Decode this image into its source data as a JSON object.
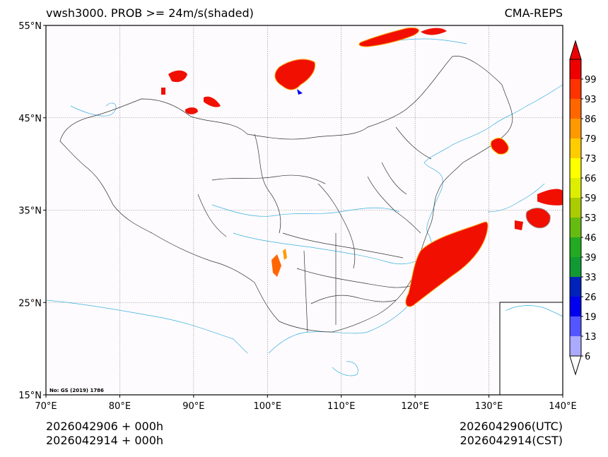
{
  "header": {
    "title_left": "vwsh3000. PROB >= 24m/s(shaded)",
    "title_right": "CMA-REPS"
  },
  "footer": {
    "left_line1": "2026042906  +  000h",
    "left_line2": "2026042914  +  000h",
    "right_line1": "2026042906(UTC)",
    "right_line2": "2026042914(CST)"
  },
  "map": {
    "lon_range": [
      70,
      140
    ],
    "lat_range": [
      15,
      55
    ],
    "lon_ticks": [
      "70°E",
      "80°E",
      "90°E",
      "100°E",
      "110°E",
      "120°E",
      "130°E",
      "140°E"
    ],
    "lat_ticks": [
      "15°N",
      "25°N",
      "35°N",
      "45°N",
      "55°N"
    ],
    "approval_note": "No: GS (2019) 1786",
    "background_color": "#fdfbfd",
    "shade_color": "#f00f00",
    "grid": "dotted"
  },
  "colorbar": {
    "labels": [
      "6",
      "13",
      "19",
      "26",
      "33",
      "39",
      "46",
      "53",
      "59",
      "66",
      "73",
      "79",
      "86",
      "93",
      "99"
    ],
    "colors": [
      "#aaaaff",
      "#5555ff",
      "#0000ee",
      "#0022bb",
      "#119933",
      "#22aa22",
      "#66bb11",
      "#aacc00",
      "#ddee00",
      "#ffff00",
      "#ffcc00",
      "#ff9900",
      "#ff6600",
      "#ff3300",
      "#ee0000"
    ],
    "extend": "both"
  }
}
